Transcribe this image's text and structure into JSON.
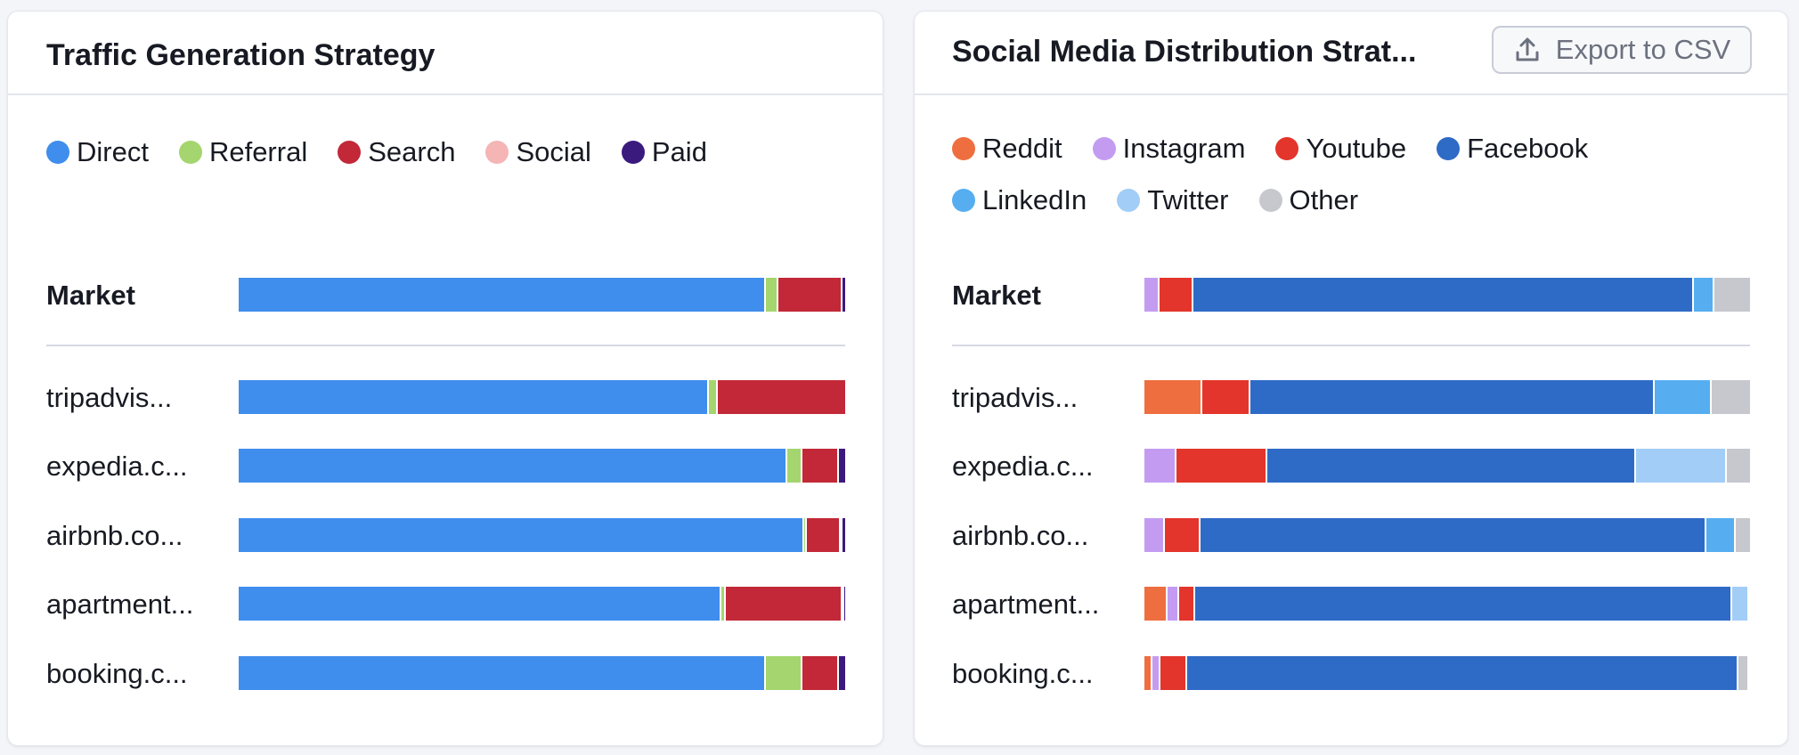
{
  "traffic": {
    "title": "Traffic Generation Strategy",
    "legend": [
      {
        "name": "Direct",
        "color": "#3f8ded"
      },
      {
        "name": "Referral",
        "color": "#a4d56f"
      },
      {
        "name": "Search",
        "color": "#c22837"
      },
      {
        "name": "Social",
        "color": "#f5b5b5"
      },
      {
        "name": "Paid",
        "color": "#3b1a7e"
      }
    ]
  },
  "social": {
    "title": "Social Media Distribution Strat...",
    "export_label": "Export to CSV",
    "legend": [
      {
        "name": "Reddit",
        "color": "#ef6e40"
      },
      {
        "name": "Instagram",
        "color": "#c39cf2"
      },
      {
        "name": "Youtube",
        "color": "#e3352b"
      },
      {
        "name": "Facebook",
        "color": "#2e6bc6"
      },
      {
        "name": "LinkedIn",
        "color": "#56aef0"
      },
      {
        "name": "Twitter",
        "color": "#a2cdf6"
      },
      {
        "name": "Other",
        "color": "#c6c8cd"
      }
    ]
  },
  "chart_data": [
    {
      "type": "bar",
      "stacked": true,
      "orientation": "horizontal",
      "title": "Traffic Generation Strategy",
      "categories": [
        "Market",
        "tripadvis...",
        "expedia.c...",
        "airbnb.co...",
        "apartment...",
        "booking.c..."
      ],
      "series": [
        {
          "name": "Direct",
          "color": "#3f8ded",
          "values": [
            87,
            77.5,
            90.5,
            93.3,
            79.6,
            87
          ]
        },
        {
          "name": "Referral",
          "color": "#a4d56f",
          "values": [
            2,
            1.5,
            2.5,
            0.5,
            0.7,
            6
          ]
        },
        {
          "name": "Search",
          "color": "#c22837",
          "values": [
            10.5,
            21,
            6,
            5.5,
            19.2,
            6
          ]
        },
        {
          "name": "Social",
          "color": "#f5b5b5",
          "values": [
            0,
            0,
            0,
            0.2,
            0.3,
            0
          ]
        },
        {
          "name": "Paid",
          "color": "#3b1a7e",
          "values": [
            0.5,
            0,
            1,
            0.5,
            0.2,
            1
          ]
        }
      ],
      "xlim": [
        0,
        100
      ]
    },
    {
      "type": "bar",
      "stacked": true,
      "orientation": "horizontal",
      "title": "Social Media Distribution Strat...",
      "categories": [
        "Market",
        "tripadvis...",
        "expedia.c...",
        "airbnb.co...",
        "apartment...",
        "booking.c..."
      ],
      "series": [
        {
          "name": "Reddit",
          "color": "#ef6e40",
          "values": [
            0,
            9.5,
            0,
            0,
            3.8,
            1.3
          ]
        },
        {
          "name": "Instagram",
          "color": "#c39cf2",
          "values": [
            2.5,
            0,
            5.3,
            3.4,
            2,
            1.4
          ]
        },
        {
          "name": "Youtube",
          "color": "#e3352b",
          "values": [
            5.6,
            8,
            15,
            5.8,
            2.6,
            4.4
          ]
        },
        {
          "name": "Facebook",
          "color": "#2e6bc6",
          "values": [
            82.6,
            66.7,
            60.9,
            83.6,
            88.6,
            91
          ]
        },
        {
          "name": "LinkedIn",
          "color": "#56aef0",
          "values": [
            3.4,
            9.5,
            0,
            4.9,
            0,
            0
          ]
        },
        {
          "name": "Twitter",
          "color": "#a2cdf6",
          "values": [
            0,
            0,
            15,
            0,
            2.6,
            0
          ]
        },
        {
          "name": "Other",
          "color": "#c6c8cd",
          "values": [
            5.9,
            6.3,
            3.8,
            2.3,
            0,
            1.4
          ]
        }
      ],
      "xlim": [
        0,
        100
      ]
    }
  ]
}
